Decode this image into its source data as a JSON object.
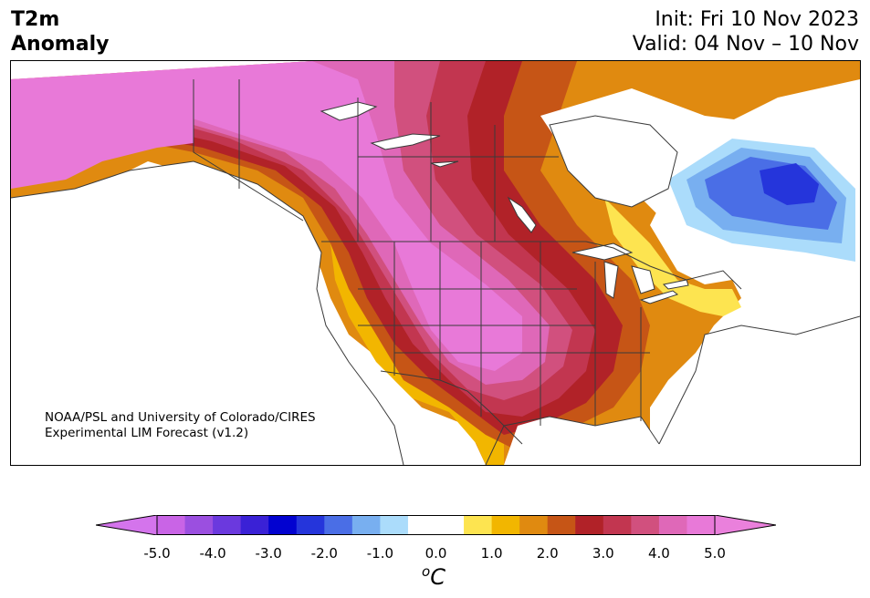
{
  "title": {
    "line1": "T2m",
    "line2": "Anomaly"
  },
  "dates": {
    "init": "Init: Fri 10 Nov 2023",
    "valid": "Valid: 04 Nov – 10 Nov"
  },
  "credit": {
    "line1": "NOAA/PSL and University of Colorado/CIRES",
    "line2": "Experimental LIM Forecast (v1.2)"
  },
  "colorbar": {
    "ticks": [
      "-5.0",
      "-4.0",
      "-3.0",
      "-2.0",
      "-1.0",
      "0.0",
      "1.0",
      "2.0",
      "3.0",
      "4.0",
      "5.0"
    ],
    "unit_base": "C",
    "unit_sup": "o",
    "colors": [
      "#c964e6",
      "#9b4fe0",
      "#6b39de",
      "#3a21d6",
      "#0202d0",
      "#2535db",
      "#4a6ee6",
      "#78aff0",
      "#abdcfb",
      "#ffffff",
      "#ffffff",
      "#fde450",
      "#f2b600",
      "#e08a10",
      "#c65516",
      "#b12228",
      "#c23650",
      "#d1507e",
      "#df68b8",
      "#e879d8"
    ],
    "extend_low": "#d474ec",
    "extend_high": "#ea80dc"
  },
  "map_colors": {
    "ocean": "#ffffff",
    "land_outline": "#3a3a3a",
    "pink_core": "#e879d8",
    "pink": "#df68b8",
    "magenta": "#d1507e",
    "crimson": "#c23650",
    "red": "#b12228",
    "rust": "#c65516",
    "orange": "#e08a10",
    "amber": "#f2b600",
    "yellow": "#fde450",
    "lightblue": "#abdcfb",
    "sky": "#78aff0",
    "blue": "#4a6ee6",
    "deepblue": "#2535db"
  }
}
